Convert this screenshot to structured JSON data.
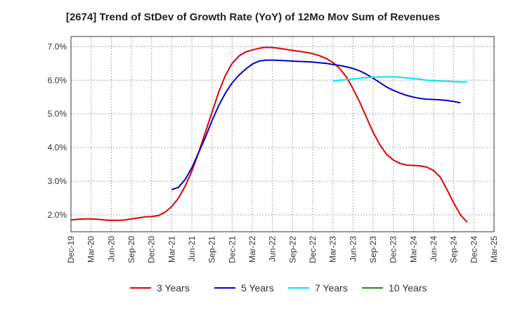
{
  "chart_data": {
    "type": "line",
    "title": "[2674]  Trend of StDev of Growth Rate (YoY) of 12Mo Mov Sum of Revenues",
    "xlabel": "",
    "ylabel": "",
    "ylim": [
      1.5,
      7.3
    ],
    "y_ticks": [
      2.0,
      3.0,
      4.0,
      5.0,
      6.0,
      7.0
    ],
    "y_tick_labels": [
      "2.0%",
      "3.0%",
      "4.0%",
      "5.0%",
      "6.0%",
      "7.0%"
    ],
    "x_tick_labels": [
      "Dec-19",
      "Mar-20",
      "Jun-20",
      "Sep-20",
      "Dec-20",
      "Mar-21",
      "Jun-21",
      "Sep-21",
      "Dec-21",
      "Mar-22",
      "Jun-22",
      "Sep-22",
      "Dec-22",
      "Mar-23",
      "Jun-23",
      "Sep-23",
      "Dec-23",
      "Mar-24",
      "Jun-24",
      "Sep-24",
      "Dec-24",
      "Mar-25"
    ],
    "grid": true,
    "legend_position": "bottom",
    "series": [
      {
        "name": "3 Years",
        "color": "#dd0000",
        "start_month": 0,
        "values": [
          1.85,
          1.87,
          1.88,
          1.88,
          1.87,
          1.85,
          1.84,
          1.84,
          1.85,
          1.88,
          1.91,
          1.94,
          1.95,
          1.98,
          2.08,
          2.25,
          2.5,
          2.85,
          3.3,
          3.85,
          4.45,
          5.05,
          5.65,
          6.15,
          6.5,
          6.72,
          6.84,
          6.9,
          6.95,
          6.98,
          6.97,
          6.95,
          6.92,
          6.89,
          6.86,
          6.83,
          6.79,
          6.73,
          6.65,
          6.53,
          6.35,
          6.1,
          5.75,
          5.35,
          4.9,
          4.45,
          4.08,
          3.8,
          3.63,
          3.53,
          3.48,
          3.47,
          3.46,
          3.42,
          3.32,
          3.12,
          2.75,
          2.35,
          2.0,
          1.78
        ]
      },
      {
        "name": "5 Years",
        "color": "#0000cc",
        "start_month": 15,
        "values": [
          2.75,
          2.82,
          3.05,
          3.4,
          3.85,
          4.3,
          4.8,
          5.25,
          5.62,
          5.92,
          6.15,
          6.33,
          6.48,
          6.57,
          6.6,
          6.6,
          6.59,
          6.58,
          6.57,
          6.56,
          6.55,
          6.54,
          6.52,
          6.5,
          6.47,
          6.44,
          6.4,
          6.35,
          6.28,
          6.18,
          6.06,
          5.93,
          5.8,
          5.7,
          5.62,
          5.55,
          5.5,
          5.46,
          5.44,
          5.43,
          5.42,
          5.4,
          5.37,
          5.33
        ]
      },
      {
        "name": "7 Years",
        "color": "#00e5ee",
        "start_month": 39,
        "values": [
          5.98,
          6.0,
          6.02,
          6.04,
          6.06,
          6.08,
          6.09,
          6.1,
          6.1,
          6.1,
          6.09,
          6.07,
          6.05,
          6.03,
          6.0,
          5.99,
          5.98,
          5.97,
          5.96,
          5.95,
          5.95
        ]
      },
      {
        "name": "10 Years",
        "color": "#228b22",
        "start_month": 59,
        "values": []
      }
    ]
  }
}
